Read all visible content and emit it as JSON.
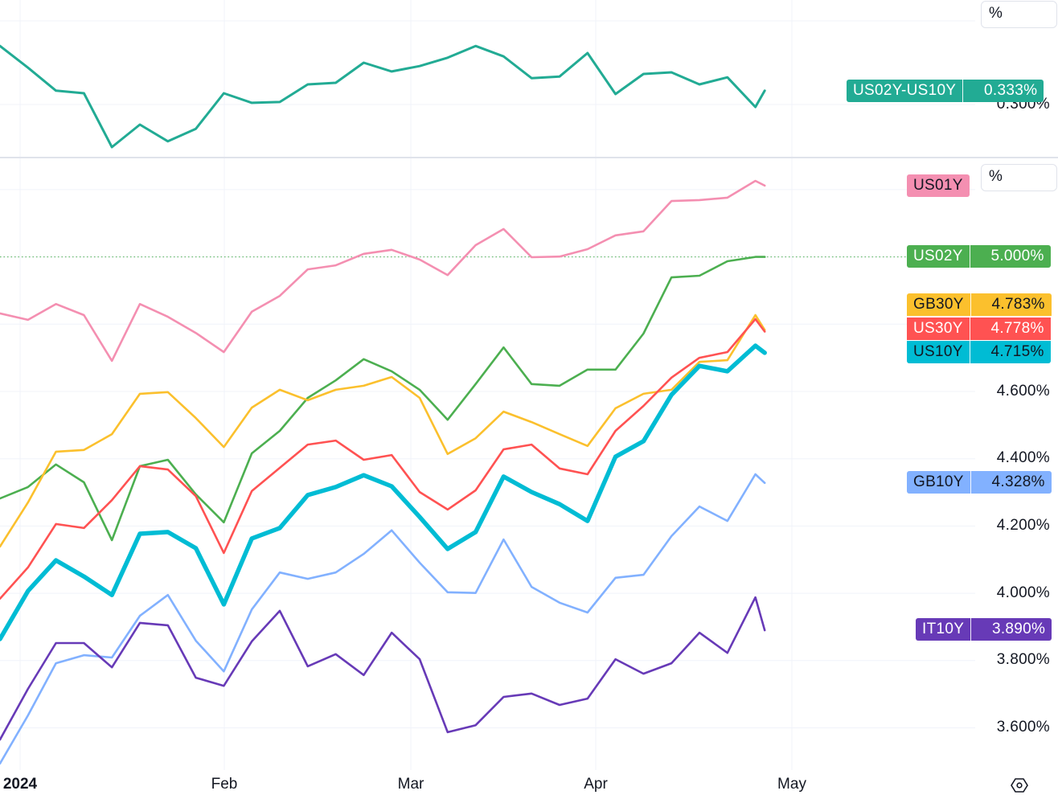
{
  "chart_data": [
    {
      "type": "line",
      "pane": "top",
      "y_unit": "%",
      "y_ticks": [
        "0.300%"
      ],
      "grid": true,
      "dates": [
        "Dec 27",
        "Jan 2",
        "Jan 5",
        "Jan 10",
        "Jan 16",
        "Jan 19",
        "Jan 24",
        "Jan 29",
        "Feb 1",
        "Feb 6",
        "Feb 9",
        "Feb 14",
        "Feb 20",
        "Feb 23",
        "Feb 28",
        "Mar 4",
        "Mar 7",
        "Mar 12",
        "Mar 15",
        "Mar 20",
        "Mar 25",
        "Mar 28",
        "Apr 3",
        "Apr 8",
        "Apr 11",
        "Apr 16",
        "Apr 19",
        "Apr 24",
        "Apr 25"
      ],
      "series": [
        {
          "name": "US02Y-US10Y",
          "color": "#22ab94",
          "last": "0.333%",
          "values": [
            0.44,
            0.388,
            0.333,
            0.327,
            0.198,
            0.252,
            0.212,
            0.242,
            0.327,
            0.304,
            0.306,
            0.348,
            0.352,
            0.4,
            0.379,
            0.392,
            0.412,
            0.44,
            0.415,
            0.363,
            0.367,
            0.423,
            0.325,
            0.373,
            0.377,
            0.348,
            0.365,
            0.294,
            0.333
          ]
        }
      ]
    },
    {
      "type": "line",
      "pane": "main",
      "y_unit": "%",
      "y_ticks": [
        "4.600%",
        "4.400%",
        "4.200%",
        "4.000%",
        "3.800%",
        "3.600%"
      ],
      "x_ticks": [
        "2024",
        "Feb",
        "Mar",
        "Apr",
        "May"
      ],
      "grid": true,
      "dates": [
        "Dec 27",
        "Jan 2",
        "Jan 5",
        "Jan 10",
        "Jan 16",
        "Jan 19",
        "Jan 24",
        "Jan 29",
        "Feb 1",
        "Feb 6",
        "Feb 9",
        "Feb 14",
        "Feb 20",
        "Feb 23",
        "Feb 28",
        "Mar 4",
        "Mar 7",
        "Mar 12",
        "Mar 15",
        "Mar 20",
        "Mar 25",
        "Mar 28",
        "Apr 3",
        "Apr 8",
        "Apr 11",
        "Apr 16",
        "Apr 19",
        "Apr 24",
        "Apr 25"
      ],
      "series": [
        {
          "name": "US01Y",
          "color": "#f48fb1",
          "text": "#131722",
          "last": "",
          "values": [
            4.832,
            4.813,
            4.86,
            4.827,
            4.691,
            4.86,
            4.822,
            4.774,
            4.717,
            4.837,
            4.884,
            4.963,
            4.975,
            5.009,
            5.021,
            4.992,
            4.946,
            5.035,
            5.083,
            4.999,
            5.001,
            5.023,
            5.064,
            5.076,
            5.166,
            5.169,
            5.176,
            5.226,
            5.212
          ]
        },
        {
          "name": "US02Y",
          "color": "#4caf50",
          "text": "#ffffff",
          "last": "5.000%",
          "values": [
            4.282,
            4.316,
            4.383,
            4.33,
            4.158,
            4.378,
            4.397,
            4.294,
            4.211,
            4.416,
            4.483,
            4.581,
            4.633,
            4.696,
            4.66,
            4.605,
            4.516,
            4.622,
            4.731,
            4.622,
            4.617,
            4.665,
            4.665,
            4.772,
            4.939,
            4.944,
            4.987,
            5.0,
            5.0
          ]
        },
        {
          "name": "GB30Y",
          "color": "#fbc02d",
          "text": "#131722",
          "last": "4.783%",
          "values": [
            4.139,
            4.27,
            4.421,
            4.426,
            4.473,
            4.593,
            4.598,
            4.521,
            4.435,
            4.552,
            4.605,
            4.574,
            4.605,
            4.617,
            4.643,
            4.581,
            4.414,
            4.461,
            4.54,
            4.509,
            4.473,
            4.438,
            4.55,
            4.593,
            4.605,
            4.688,
            4.693,
            4.827,
            4.783
          ]
        },
        {
          "name": "US30Y",
          "color": "#ff5252",
          "text": "#ffffff",
          "last": "4.778%",
          "values": [
            3.984,
            4.077,
            4.206,
            4.194,
            4.277,
            4.378,
            4.368,
            4.289,
            4.12,
            4.304,
            4.373,
            4.442,
            4.454,
            4.397,
            4.411,
            4.301,
            4.249,
            4.306,
            4.428,
            4.442,
            4.371,
            4.354,
            4.483,
            4.557,
            4.641,
            4.7,
            4.717,
            4.815,
            4.778
          ]
        },
        {
          "name": "GB10Y",
          "color": "#82b1ff",
          "text": "#131722",
          "last": "4.328%",
          "values": [
            3.494,
            3.637,
            3.792,
            3.816,
            3.809,
            3.933,
            3.995,
            3.859,
            3.768,
            3.952,
            4.062,
            4.043,
            4.062,
            4.117,
            4.187,
            4.091,
            4.003,
            4.001,
            4.16,
            4.019,
            3.972,
            3.943,
            4.046,
            4.055,
            4.17,
            4.258,
            4.215,
            4.354,
            4.328
          ]
        },
        {
          "name": "IT10Y",
          "color": "#673ab7",
          "text": "#ffffff",
          "last": "3.890%",
          "values": [
            3.565,
            3.716,
            3.852,
            3.852,
            3.78,
            3.912,
            3.905,
            3.749,
            3.725,
            3.857,
            3.948,
            3.783,
            3.819,
            3.757,
            3.883,
            3.804,
            3.587,
            3.608,
            3.692,
            3.702,
            3.668,
            3.687,
            3.804,
            3.761,
            3.792,
            3.883,
            3.823,
            3.988,
            3.89
          ]
        },
        {
          "name": "US10Y",
          "color": "#00bcd4",
          "text": "#131722",
          "last": "4.715%",
          "values": [
            3.864,
            4.007,
            4.098,
            4.05,
            3.995,
            4.177,
            4.182,
            4.134,
            3.967,
            4.163,
            4.194,
            4.292,
            4.316,
            4.351,
            4.318,
            4.227,
            4.132,
            4.182,
            4.347,
            4.301,
            4.265,
            4.215,
            4.406,
            4.452,
            4.59,
            4.676,
            4.66,
            4.736,
            4.715
          ]
        }
      ]
    }
  ],
  "axis": {
    "top_tick": "0.300%",
    "main_ticks": [
      "4.600%",
      "4.400%",
      "4.200%",
      "4.000%",
      "3.800%",
      "3.600%"
    ],
    "x_labels": [
      "2024",
      "Feb",
      "Mar",
      "Apr",
      "May"
    ],
    "unit_label_top": "%",
    "unit_label_main": "%"
  },
  "controls": {
    "settings_icon": "gear-hexagon-icon"
  }
}
